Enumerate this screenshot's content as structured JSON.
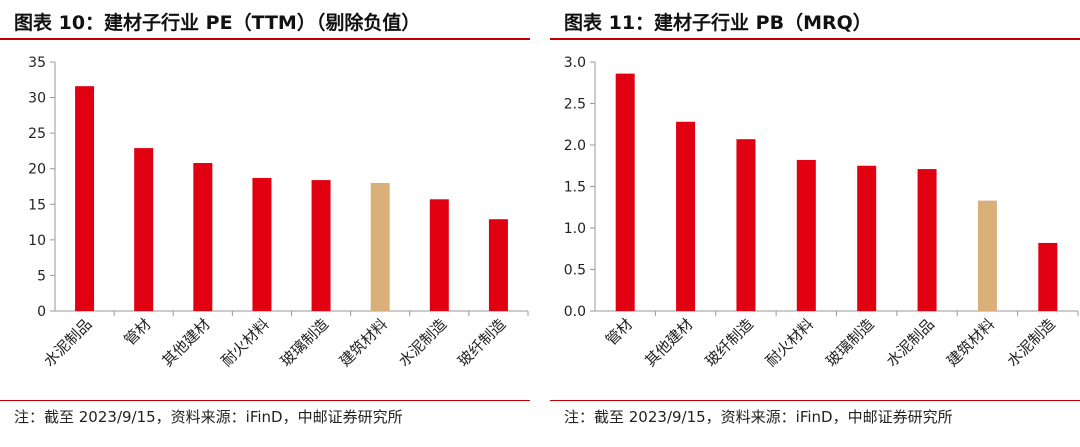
{
  "colors": {
    "bar": "#e00012",
    "highlight": "#d9b07a",
    "rule": "#c00000"
  },
  "panels": [
    {
      "title": "图表 10：建材子行业 PE（TTM）（剔除负值）",
      "note": "注：截至 2023/9/15，资料来源：iFinD，中邮证券研究所"
    },
    {
      "title": "图表 11：建材子行业 PB（MRQ）",
      "note": "注：截至 2023/9/15，资料来源：iFinD，中邮证券研究所"
    }
  ],
  "chart_data": [
    {
      "type": "bar",
      "title": "建材子行业 PE（TTM）（剔除负值）",
      "categories": [
        "水泥制品",
        "管材",
        "其他建材",
        "耐火材料",
        "玻璃制造",
        "建筑材料",
        "水泥制造",
        "玻纤制造"
      ],
      "values": [
        31.6,
        22.9,
        20.8,
        18.7,
        18.4,
        18.0,
        15.7,
        12.9
      ],
      "highlight_category": "建筑材料",
      "ylim": [
        0,
        35
      ],
      "yticks": [
        0,
        5,
        10,
        15,
        20,
        25,
        30,
        35
      ],
      "ytick_labels": [
        "0",
        "5",
        "10",
        "15",
        "20",
        "25",
        "30",
        "35"
      ],
      "grid": false,
      "legend": false
    },
    {
      "type": "bar",
      "title": "建材子行业 PB（MRQ）",
      "categories": [
        "管材",
        "其他建材",
        "玻纤制造",
        "耐火材料",
        "玻璃制造",
        "水泥制品",
        "建筑材料",
        "水泥制造"
      ],
      "values": [
        2.86,
        2.28,
        2.07,
        1.82,
        1.75,
        1.71,
        1.33,
        0.82
      ],
      "highlight_category": "建筑材料",
      "ylim": [
        0,
        3.0
      ],
      "yticks": [
        0,
        0.5,
        1.0,
        1.5,
        2.0,
        2.5,
        3.0
      ],
      "ytick_labels": [
        "0.0",
        "0.5",
        "1.0",
        "1.5",
        "2.0",
        "2.5",
        "3.0"
      ],
      "grid": false,
      "legend": false
    }
  ]
}
